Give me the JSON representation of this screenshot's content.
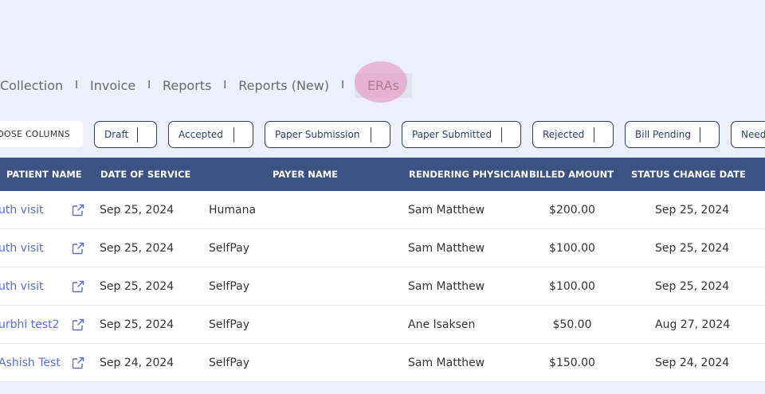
{
  "nav": {
    "items": [
      {
        "label": "Collection",
        "active": false
      },
      {
        "label": "Invoice",
        "active": false
      },
      {
        "label": "Reports",
        "active": false
      },
      {
        "label": "Reports (New)",
        "active": false
      },
      {
        "label": "ERAs",
        "active": true
      }
    ],
    "separator": "I"
  },
  "filters": {
    "choose_columns": "OOSE COLUMNS",
    "chips": [
      "Draft",
      "Accepted",
      "Paper Submission",
      "Paper Submitted",
      "Rejected",
      "Bill Pending",
      "Need"
    ]
  },
  "table": {
    "headers": {
      "patient_name": "PATIENT NAME",
      "date_of_service": "DATE OF SERVICE",
      "payer_name": "PAYER NAME",
      "rendering_physician": "RENDERING PHYSICIAN",
      "billed_amount": "BILLED AMOUNT",
      "status_change_date": "STATUS CHANGE DATE"
    },
    "rows": [
      {
        "patient": "uth visit",
        "dos": "Sep 25, 2024",
        "payer": "Humana",
        "physician": "Sam Matthew",
        "billed": "$200.00",
        "status_date": "Sep 25, 2024"
      },
      {
        "patient": "uth visit",
        "dos": "Sep 25, 2024",
        "payer": "SelfPay",
        "physician": "Sam Matthew",
        "billed": "$100.00",
        "status_date": "Sep 25, 2024"
      },
      {
        "patient": "uth visit",
        "dos": "Sep 25, 2024",
        "payer": "SelfPay",
        "physician": "Sam Matthew",
        "billed": "$100.00",
        "status_date": "Sep 25, 2024"
      },
      {
        "patient": "urbhi test2",
        "dos": "Sep 25, 2024",
        "payer": "SelfPay",
        "physician": "Ane Isaksen",
        "billed": "$50.00",
        "status_date": "Aug 27, 2024"
      },
      {
        "patient": "Ashish Test",
        "dos": "Sep 24, 2024",
        "payer": "SelfPay",
        "physician": "Sam Matthew",
        "billed": "$150.00",
        "status_date": "Sep 24, 2024"
      }
    ]
  },
  "colors": {
    "header_bg": "#3c5282",
    "link": "#5a6fd6",
    "chip_border": "#2f3d6b",
    "page_bg": "#ebf0fa"
  }
}
